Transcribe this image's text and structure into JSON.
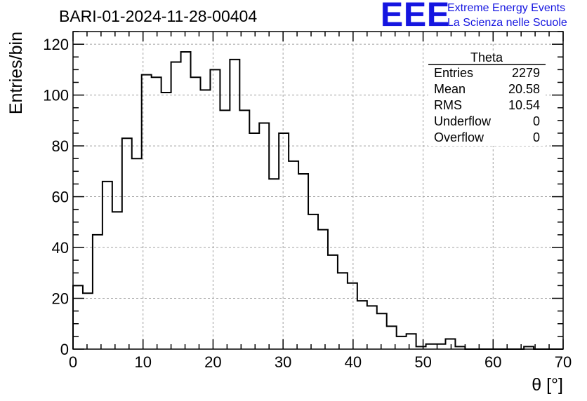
{
  "header": {
    "run_title": "BARI-01-2024-11-28-00404",
    "logo_text": "EEE",
    "logo_line1": "Extreme Energy Events",
    "logo_line2": "La Scienza nelle Scuole"
  },
  "stats": {
    "name": "Theta",
    "rows": [
      {
        "label": "Entries",
        "value": "2279"
      },
      {
        "label": "Mean",
        "value": "20.58"
      },
      {
        "label": "RMS",
        "value": "10.54"
      },
      {
        "label": "Underflow",
        "value": "0"
      },
      {
        "label": "Overflow",
        "value": "0"
      }
    ]
  },
  "chart_data": {
    "type": "histogram",
    "title": "BARI-01-2024-11-28-00404",
    "xlabel": "θ [°]",
    "ylabel": "Entries/bin",
    "xlim": [
      0,
      70
    ],
    "ylim": [
      0,
      125
    ],
    "bin_width": 1.4,
    "bin_start": 0,
    "grid": true,
    "xticks": [
      0,
      10,
      20,
      30,
      40,
      50,
      60,
      70
    ],
    "yticks": [
      0,
      20,
      40,
      60,
      80,
      100,
      120
    ],
    "values": [
      25,
      22,
      45,
      66,
      54,
      83,
      75,
      108,
      107,
      101,
      113,
      117,
      107,
      102,
      110,
      94,
      114,
      94,
      85,
      89,
      67,
      85,
      74,
      69,
      53,
      47,
      37,
      30,
      26,
      19,
      17,
      14,
      9,
      5,
      6,
      1,
      2,
      2,
      4,
      1,
      0,
      0,
      0,
      0,
      0,
      0,
      1,
      0,
      0,
      0
    ],
    "color": "#000000",
    "logo_color": "#1515e0"
  }
}
